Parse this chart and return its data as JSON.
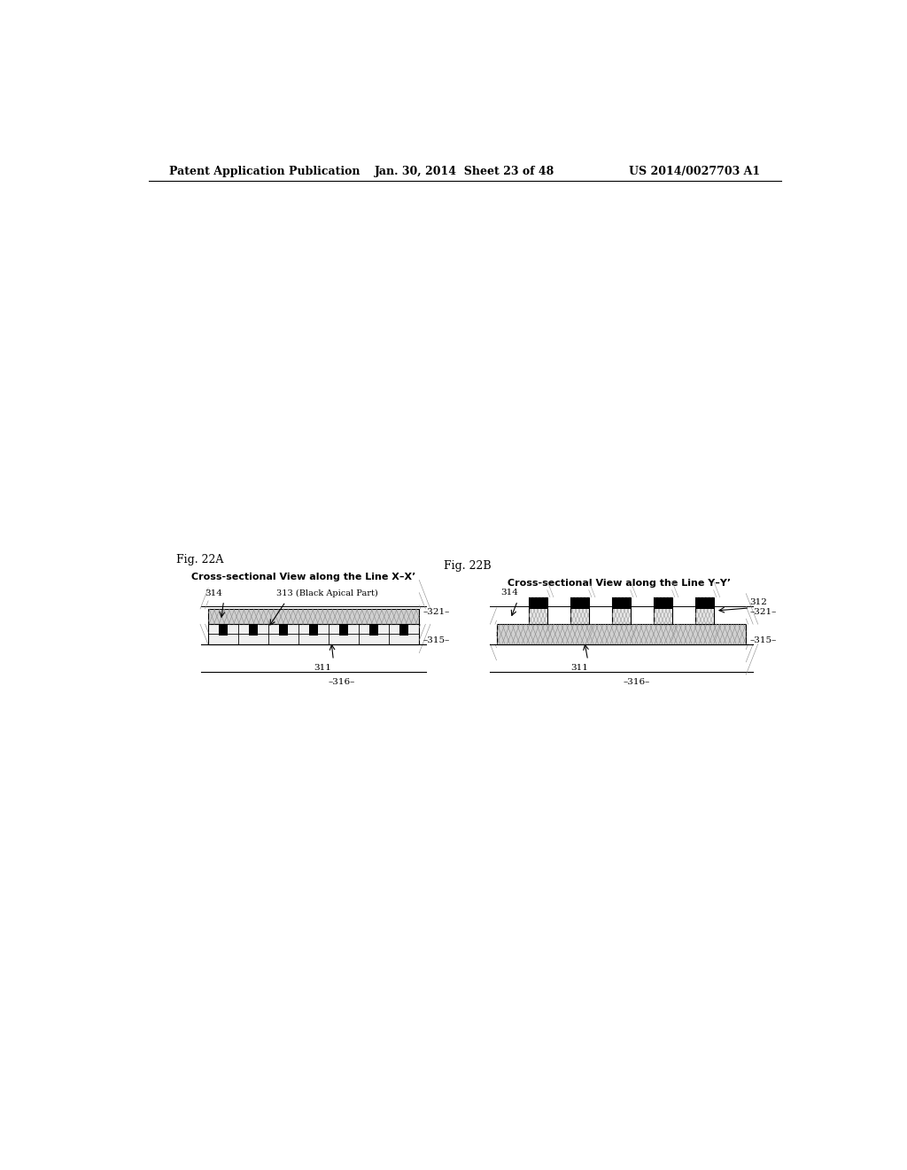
{
  "bg_color": "#ffffff",
  "header_left": "Patent Application Publication",
  "header_mid": "Jan. 30, 2014  Sheet 23 of 48",
  "header_right": "US 2014/0027703 A1",
  "fig_a_label": "Fig. 22A",
  "fig_b_label": "Fig. 22B",
  "fig_a_title": "Cross-sectional View along the Line X–X’",
  "fig_b_title": "Cross-sectional View along the Line Y–Y’"
}
